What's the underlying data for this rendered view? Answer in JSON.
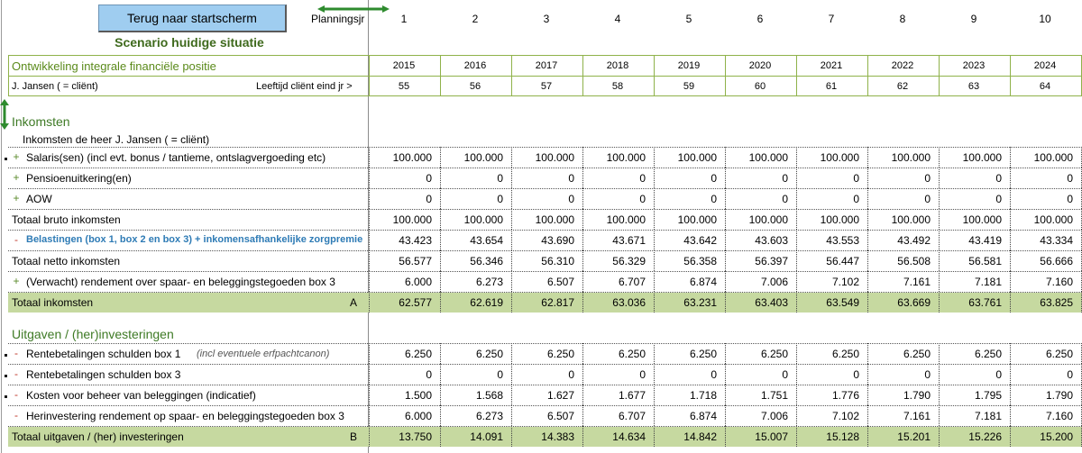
{
  "header": {
    "back_button": "Terug naar startscherm",
    "scenario_title": "Scenario huidige situatie",
    "planning_label": "Planningsjr"
  },
  "years_index": [
    "1",
    "2",
    "3",
    "4",
    "5",
    "6",
    "7",
    "8",
    "9",
    "10"
  ],
  "overview": {
    "title": "Ontwikkeling integrale financiële positie",
    "years": [
      "2015",
      "2016",
      "2017",
      "2018",
      "2019",
      "2020",
      "2021",
      "2022",
      "2023",
      "2024"
    ],
    "client_label": "J. Jansen ( = cliënt)",
    "age_label": "Leeftijd cliënt eind jr >",
    "ages": [
      "55",
      "56",
      "57",
      "58",
      "59",
      "60",
      "61",
      "62",
      "63",
      "64"
    ]
  },
  "income": {
    "section_title": "Inkomsten",
    "subheader": "Inkomsten de heer J. Jansen ( = cliënt)",
    "rows": [
      {
        "sign": "+",
        "label": "Salaris(sen) (incl evt. bonus / tantieme, ontslagvergoeding etc)",
        "values": [
          "100.000",
          "100.000",
          "100.000",
          "100.000",
          "100.000",
          "100.000",
          "100.000",
          "100.000",
          "100.000",
          "100.000"
        ]
      },
      {
        "sign": "+",
        "label": "Pensioenuitkering(en)",
        "values": [
          "0",
          "0",
          "0",
          "0",
          "0",
          "0",
          "0",
          "0",
          "0",
          "0"
        ]
      },
      {
        "sign": "+",
        "label": "AOW",
        "values": [
          "0",
          "0",
          "0",
          "0",
          "0",
          "0",
          "0",
          "0",
          "0",
          "0"
        ]
      },
      {
        "sign": "",
        "label": "Totaal bruto inkomsten",
        "values": [
          "100.000",
          "100.000",
          "100.000",
          "100.000",
          "100.000",
          "100.000",
          "100.000",
          "100.000",
          "100.000",
          "100.000"
        ]
      },
      {
        "sign": "-",
        "label": "Belastingen (box 1, box 2 en box 3) + inkomensafhankelijke zorgpremie",
        "values": [
          "43.423",
          "43.654",
          "43.690",
          "43.671",
          "43.642",
          "43.603",
          "43.553",
          "43.492",
          "43.419",
          "43.334"
        ]
      },
      {
        "sign": "",
        "label": "Totaal netto inkomsten",
        "values": [
          "56.577",
          "56.346",
          "56.310",
          "56.329",
          "56.358",
          "56.397",
          "56.447",
          "56.508",
          "56.581",
          "56.666"
        ]
      },
      {
        "sign": "+",
        "label": "(Verwacht) rendement over spaar- en beleggingstegoeden box 3",
        "values": [
          "6.000",
          "6.273",
          "6.507",
          "6.707",
          "6.874",
          "7.006",
          "7.102",
          "7.161",
          "7.181",
          "7.160"
        ]
      }
    ],
    "total_label": "Totaal inkomsten",
    "total_marker": "A",
    "total_values": [
      "62.577",
      "62.619",
      "62.817",
      "63.036",
      "63.231",
      "63.403",
      "63.549",
      "63.669",
      "63.761",
      "63.825"
    ]
  },
  "expenses": {
    "section_title": "Uitgaven / (her)investeringen",
    "rows": [
      {
        "sign": "-",
        "label": "Rentebetalingen schulden box 1",
        "note": "(incl eventuele erfpachtcanon)",
        "values": [
          "6.250",
          "6.250",
          "6.250",
          "6.250",
          "6.250",
          "6.250",
          "6.250",
          "6.250",
          "6.250",
          "6.250"
        ]
      },
      {
        "sign": "-",
        "label": "Rentebetalingen schulden box 3",
        "note": "",
        "values": [
          "0",
          "0",
          "0",
          "0",
          "0",
          "0",
          "0",
          "0",
          "0",
          "0"
        ]
      },
      {
        "sign": "-",
        "label": "Kosten voor beheer van beleggingen (indicatief)",
        "note": "",
        "values": [
          "1.500",
          "1.568",
          "1.627",
          "1.677",
          "1.718",
          "1.751",
          "1.776",
          "1.790",
          "1.795",
          "1.790"
        ]
      },
      {
        "sign": "-",
        "label": "Herinvestering rendement op spaar- en beleggingstegoeden box 3",
        "note": "",
        "values": [
          "6.000",
          "6.273",
          "6.507",
          "6.707",
          "6.874",
          "7.006",
          "7.102",
          "7.161",
          "7.181",
          "7.160"
        ]
      }
    ],
    "total_label": "Totaal uitgaven / (her) investeringen",
    "total_marker": "B",
    "total_values": [
      "13.750",
      "14.091",
      "14.383",
      "14.634",
      "14.842",
      "15.007",
      "15.128",
      "15.201",
      "15.226",
      "15.200"
    ]
  },
  "colors": {
    "accent_green": "#3f6a1d",
    "band_green": "#c6d9a0",
    "button_blue": "#9fcdf0",
    "tax_blue": "#2e7bb5"
  }
}
